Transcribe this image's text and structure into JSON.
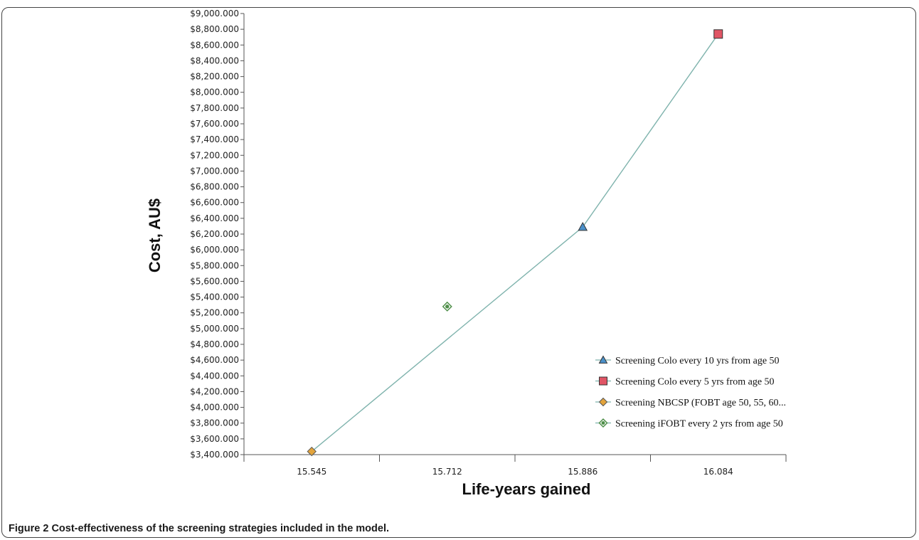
{
  "caption": {
    "label": "Figure 2",
    "text": "Cost-effectiveness of the screening strategies included in the model."
  },
  "chart_data": {
    "type": "scatter",
    "title": "",
    "xlabel": "Life-years gained",
    "ylabel": "Cost, AU$",
    "x_categories": [
      "15.545",
      "15.712",
      "15.886",
      "16.084"
    ],
    "ylim": [
      3400000,
      9000000
    ],
    "y_tick_step": 200000,
    "y_tick_labels": [
      "$3,400.000",
      "$3,600.000",
      "$3,800.000",
      "$4,000.000",
      "$4,200.000",
      "$4,400.000",
      "$4,600.000",
      "$4,800.000",
      "$5,000.000",
      "$5,200.000",
      "$5,400.000",
      "$5,600.000",
      "$5,800.000",
      "$6,000.000",
      "$6,200.000",
      "$6,400.000",
      "$6,600.000",
      "$6,800.000",
      "$7,000.000",
      "$7,200.000",
      "$7,400.000",
      "$7,600.000",
      "$7,800.000",
      "$8,000.000",
      "$8,200.000",
      "$8,400.000",
      "$8,600.000",
      "$8,800.000",
      "$9,000.000"
    ],
    "grid": false,
    "legend_position": "bottom-right",
    "frontier_color": "#7fb3ad",
    "frontier": [
      "NBCSP",
      "Colo10",
      "Colo5"
    ],
    "series": [
      {
        "key": "Colo10",
        "name": "Screening Colo every 10 yrs from age 50",
        "marker": "triangle",
        "color": "#4a90c9",
        "x": "15.886",
        "y": 6290000
      },
      {
        "key": "Colo5",
        "name": "Screening Colo every 5 yrs from age 50",
        "marker": "square",
        "color": "#e05565",
        "x": "16.084",
        "y": 8740000
      },
      {
        "key": "NBCSP",
        "name": "Screening NBCSP (FOBT age 50, 55, 60...",
        "marker": "diamond",
        "color": "#e3a43c",
        "x": "15.545",
        "y": 3440000
      },
      {
        "key": "iFOBT",
        "name": "Screening iFOBT every 2 yrs from age 50",
        "marker": "dotdiamond",
        "color": "#4f8f4a",
        "x": "15.712",
        "y": 5280000
      }
    ]
  }
}
